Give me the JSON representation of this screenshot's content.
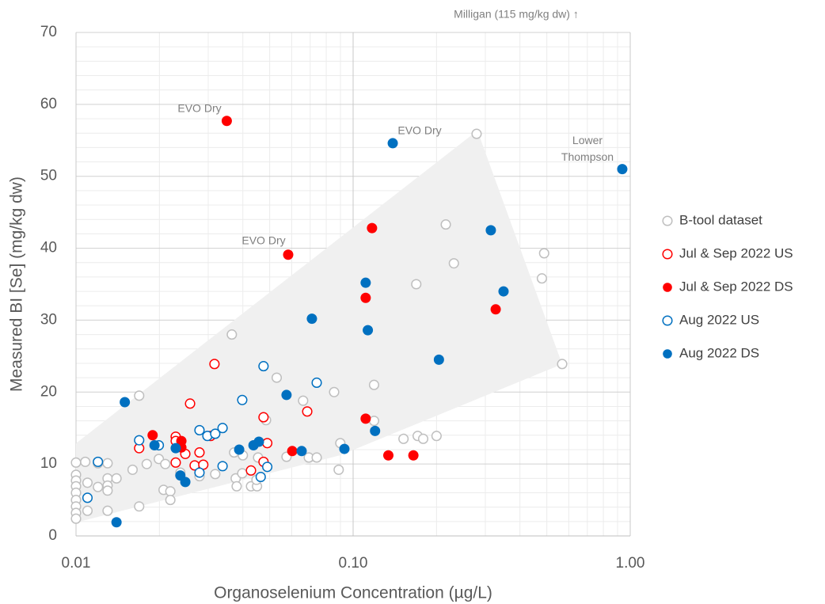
{
  "chart_data": {
    "type": "scatter",
    "x_label": "Organoselenium Concentration (µg/L)",
    "y_label": "Measured BI [Se] (mg/kg dw)",
    "note": "Milligan (115 mg/kg dw) ↑",
    "annotations": [
      "EVO Dry",
      "EVO Dry",
      "EVO Dry",
      "Lower Thompson"
    ],
    "x_log": true,
    "xlim": [
      0.01,
      1
    ],
    "xticks": [
      0.01,
      {
        "value": 0.1,
        "label": "0.10"
      },
      {
        "value": 1,
        "label": "1.00"
      }
    ],
    "xminorticks": [
      0.02,
      0.03,
      0.04,
      0.05,
      0.06,
      0.07,
      0.08,
      0.09,
      0.2,
      0.3,
      0.4,
      0.5,
      0.6,
      0.7,
      0.8,
      0.9
    ],
    "ylim": [
      0,
      70
    ],
    "yticks": [
      0,
      10,
      20,
      30,
      40,
      50,
      60,
      70
    ],
    "yminorticks": [
      2,
      4,
      6,
      8,
      12,
      14,
      16,
      18,
      22,
      24,
      26,
      28,
      32,
      34,
      36,
      38,
      42,
      44,
      46,
      48,
      52,
      54,
      56,
      58,
      62,
      64,
      66,
      68
    ],
    "grid": true,
    "legend": "right",
    "series": [
      {
        "name": "B-tool dataset",
        "color": "#bfbfbf",
        "marker": "open",
        "x": [
          0.279,
          0.216,
          0.231,
          0.489,
          0.48,
          0.169,
          0.568,
          0.0365,
          0.119,
          0.0854,
          0.053,
          0.066,
          0.0169,
          0.0485,
          0.119,
          0.152,
          0.171,
          0.179,
          0.2,
          0.0899,
          0.018,
          0.016,
          0.013,
          0.014,
          0.0199,
          0.021,
          0.0372,
          0.04,
          0.0454,
          0.0575,
          0.0692,
          0.0739,
          0.0887,
          0.0108,
          0.012,
          0.013,
          0.01,
          0.01,
          0.01,
          0.01,
          0.01,
          0.01,
          0.01,
          0.01,
          0.01,
          0.011,
          0.012,
          0.013,
          0.013,
          0.011,
          0.013,
          0.0169,
          0.0207,
          0.0219,
          0.0219,
          0.0238,
          0.0279,
          0.0318,
          0.0377,
          0.038,
          0.0398,
          0.0428,
          0.045,
          0.0448
        ],
        "values": [
          55.9,
          43.3,
          37.9,
          39.3,
          35.8,
          35.0,
          23.9,
          28.0,
          21.0,
          20.0,
          22.0,
          18.8,
          19.5,
          16.1,
          16.0,
          13.5,
          13.9,
          13.5,
          13.9,
          12.9,
          10.0,
          9.2,
          8.0,
          8.0,
          10.7,
          10.0,
          11.6,
          11.2,
          10.9,
          11.0,
          10.9,
          10.9,
          9.2,
          10.3,
          10.1,
          10.1,
          10.2,
          8.5,
          7.7,
          6.9,
          6.0,
          5.0,
          4.1,
          3.2,
          2.4,
          7.4,
          6.8,
          7.0,
          6.3,
          3.5,
          3.5,
          4.1,
          6.4,
          6.2,
          5.0,
          8.8,
          8.3,
          8.6,
          8.0,
          6.9,
          8.7,
          6.9,
          6.9,
          7.8
        ]
      },
      {
        "name": "Jul & Sep 2022 US",
        "color": "#ff0000",
        "marker": "open",
        "x": [
          0.0316,
          0.0258,
          0.0683,
          0.0475,
          0.049,
          0.0169,
          0.0229,
          0.0229,
          0.0248,
          0.0306,
          0.0229,
          0.0268,
          0.0288,
          0.0279,
          0.0428,
          0.0475
        ],
        "values": [
          23.9,
          18.4,
          17.3,
          16.5,
          12.9,
          12.2,
          13.8,
          13.2,
          11.4,
          13.9,
          10.2,
          9.8,
          9.9,
          11.6,
          9.1,
          10.3
        ]
      },
      {
        "name": "Jul & Sep 2022 DS",
        "color": "#ff0000",
        "marker": "filled",
        "x": [
          0.035,
          0.0583,
          0.117,
          0.111,
          0.327,
          0.111,
          0.0189,
          0.024,
          0.024,
          0.0603,
          0.134,
          0.165
        ],
        "values": [
          57.7,
          39.1,
          42.8,
          33.1,
          31.5,
          16.3,
          14.0,
          13.2,
          12.3,
          11.8,
          11.2,
          11.2
        ]
      },
      {
        "name": "Aug 2022 US",
        "color": "#0070c0",
        "marker": "open",
        "x": [
          0.0475,
          0.0398,
          0.0739,
          0.0169,
          0.0199,
          0.0279,
          0.0298,
          0.0318,
          0.0338,
          0.012,
          0.0338,
          0.0279,
          0.049,
          0.0464,
          0.011
        ],
        "values": [
          23.6,
          18.9,
          21.3,
          13.3,
          12.6,
          14.7,
          13.9,
          14.2,
          15.0,
          10.3,
          9.7,
          8.8,
          9.6,
          8.2,
          5.3
        ]
      },
      {
        "name": "Aug 2022 DS",
        "color": "#0070c0",
        "marker": "filled",
        "x": [
          0.139,
          0.936,
          0.314,
          0.111,
          0.349,
          0.071,
          0.113,
          0.204,
          0.015,
          0.0575,
          0.12,
          0.0192,
          0.0229,
          0.0388,
          0.0437,
          0.0457,
          0.0652,
          0.093,
          0.0238,
          0.0248,
          0.014
        ],
        "values": [
          54.6,
          51.0,
          42.5,
          35.2,
          34.0,
          30.2,
          28.6,
          24.5,
          18.6,
          19.6,
          14.6,
          12.6,
          12.2,
          12.0,
          12.6,
          13.1,
          11.8,
          12.1,
          8.4,
          7.5,
          1.9
        ]
      }
    ]
  }
}
